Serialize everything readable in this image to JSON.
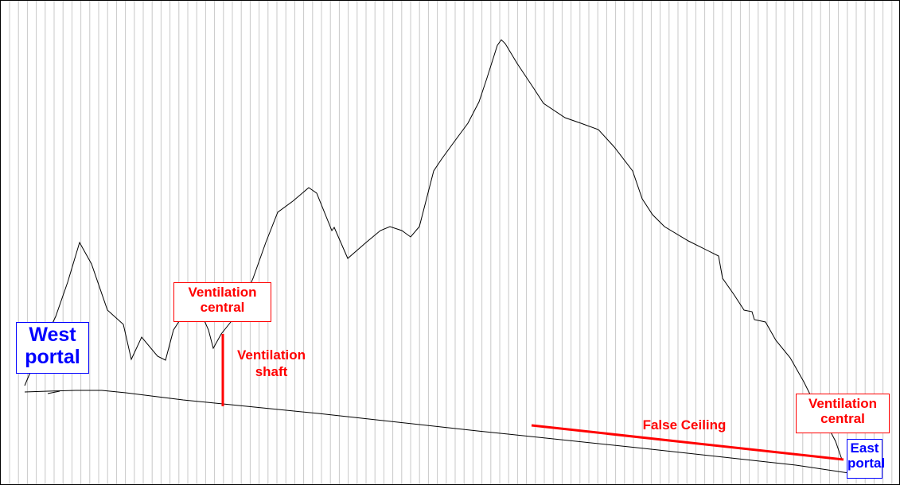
{
  "labels": {
    "west_portal": [
      "West",
      "portal"
    ],
    "ventilation_central_west": [
      "Ventilation",
      "central"
    ],
    "ventilation_shaft": [
      "Ventilation",
      "shaft"
    ],
    "false_ceiling": "False Ceiling",
    "ventilation_central_east": [
      "Ventilation",
      "central"
    ],
    "east_portal": [
      "East",
      "portal"
    ]
  },
  "colors": {
    "portal": "#0000ff",
    "ventilation": "#ff0000",
    "terrain": "#000000",
    "grid": "#c0c0c0"
  }
}
